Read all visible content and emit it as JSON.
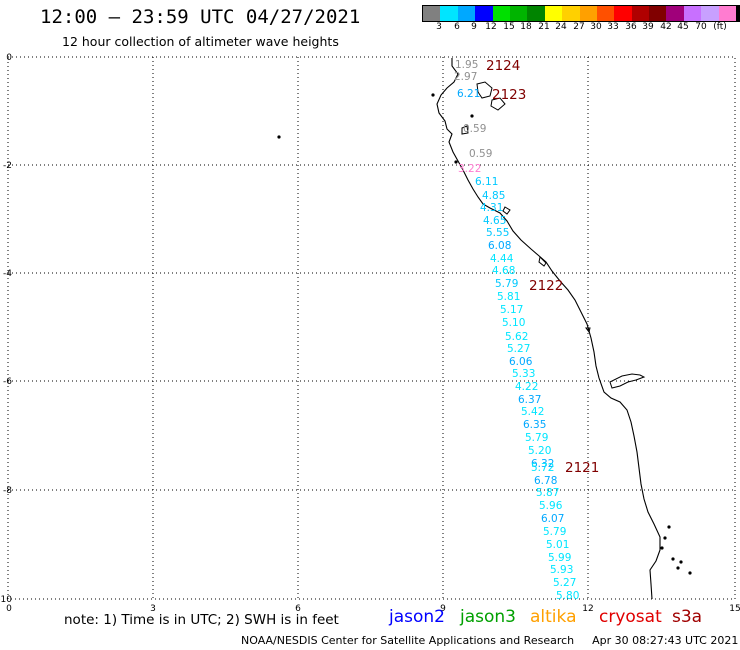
{
  "header": {
    "title": "12:00 – 23:59 UTC 04/27/2021",
    "subtitle": "12 hour collection of altimeter wave heights"
  },
  "color_scale": {
    "colors": [
      "#808080",
      "#00e5ff",
      "#00a8ff",
      "#0000ff",
      "#00e000",
      "#00b400",
      "#008400",
      "#ffff00",
      "#ffd000",
      "#ffa000",
      "#ff5000",
      "#ff0000",
      "#b00000",
      "#800000",
      "#a0007a",
      "#c870ff",
      "#c8a0ff",
      "#ff7cd0",
      "#000000"
    ],
    "labels": [
      "3",
      "6",
      "9",
      "12",
      "15",
      "18",
      "21",
      "24",
      "27",
      "30",
      "33",
      "36",
      "39",
      "42",
      "45",
      "70",
      "(ft)"
    ]
  },
  "axes": {
    "x_ticks": [
      "0",
      "3",
      "6",
      "9",
      "12",
      "15"
    ],
    "y_ticks": [
      "0",
      "-2",
      "-4",
      "-6",
      "-8",
      "-10"
    ]
  },
  "tracks": [
    {
      "id": "2124",
      "label": "2124",
      "color": "#800000"
    },
    {
      "id": "2123",
      "label": "2123",
      "color": "#800000"
    },
    {
      "id": "2122",
      "label": "2122",
      "color": "#800000"
    },
    {
      "id": "2121",
      "label": "2121",
      "color": "#800000"
    }
  ],
  "wave_heights": [
    {
      "v": "1.95",
      "c": "#909090"
    },
    {
      "v": "2.97",
      "c": "#909090"
    },
    {
      "v": "6.21",
      "c": "#00a8ff"
    },
    {
      "v": "0.59",
      "c": "#909090"
    },
    {
      "v": "0.59",
      "c": "#909090"
    },
    {
      "v": "3.22",
      "c": "#ff7cd0"
    },
    {
      "v": "6.11",
      "c": "#00c8ff"
    },
    {
      "v": "4.85",
      "c": "#00c8ff"
    },
    {
      "v": "4.31",
      "c": "#00c8ff"
    },
    {
      "v": "4.65",
      "c": "#00c8ff"
    },
    {
      "v": "5.55",
      "c": "#00c8ff"
    },
    {
      "v": "6.08",
      "c": "#00a8ff"
    },
    {
      "v": "4.44",
      "c": "#00e5ff"
    },
    {
      "v": "4.68",
      "c": "#00e5ff"
    },
    {
      "v": "5.79",
      "c": "#00c8ff"
    },
    {
      "v": "5.81",
      "c": "#00e5ff"
    },
    {
      "v": "5.17",
      "c": "#00e5ff"
    },
    {
      "v": "5.10",
      "c": "#00e5ff"
    },
    {
      "v": "5.62",
      "c": "#00e5ff"
    },
    {
      "v": "5.27",
      "c": "#00e5ff"
    },
    {
      "v": "6.06",
      "c": "#00a8ff"
    },
    {
      "v": "5.33",
      "c": "#00e5ff"
    },
    {
      "v": "4.22",
      "c": "#00e5ff"
    },
    {
      "v": "6.37",
      "c": "#00a8ff"
    },
    {
      "v": "5.42",
      "c": "#00e5ff"
    },
    {
      "v": "6.35",
      "c": "#00a8ff"
    },
    {
      "v": "5.79",
      "c": "#00e5ff"
    },
    {
      "v": "5.20",
      "c": "#00e5ff"
    },
    {
      "v": "6.32",
      "c": "#00a8ff"
    },
    {
      "v": "5.72",
      "c": "#00e5ff"
    },
    {
      "v": "6.78",
      "c": "#00a8ff"
    },
    {
      "v": "5.87",
      "c": "#00e5ff"
    },
    {
      "v": "5.96",
      "c": "#00e5ff"
    },
    {
      "v": "6.07",
      "c": "#00a8ff"
    },
    {
      "v": "5.79",
      "c": "#00e5ff"
    },
    {
      "v": "5.01",
      "c": "#00e5ff"
    },
    {
      "v": "5.99",
      "c": "#00e5ff"
    },
    {
      "v": "5.93",
      "c": "#00e5ff"
    },
    {
      "v": "5.27",
      "c": "#00e5ff"
    },
    {
      "v": "5.80",
      "c": "#00e5ff"
    }
  ],
  "footer": {
    "note": "note: 1) Time is in UTC; 2) SWH is in feet",
    "legend": [
      {
        "name": "jason2",
        "color": "#0000ff"
      },
      {
        "name": "jason3",
        "color": "#00a000"
      },
      {
        "name": "altika",
        "color": "#ffa000"
      },
      {
        "name": "cryosat",
        "color": "#e00000"
      },
      {
        "name": "s3a",
        "color": "#a00000"
      }
    ],
    "credit": "NOAA/NESDIS Center for Satellite Applications and Research",
    "timestamp": "Apr 30 08:27:43 UTC 2021"
  }
}
